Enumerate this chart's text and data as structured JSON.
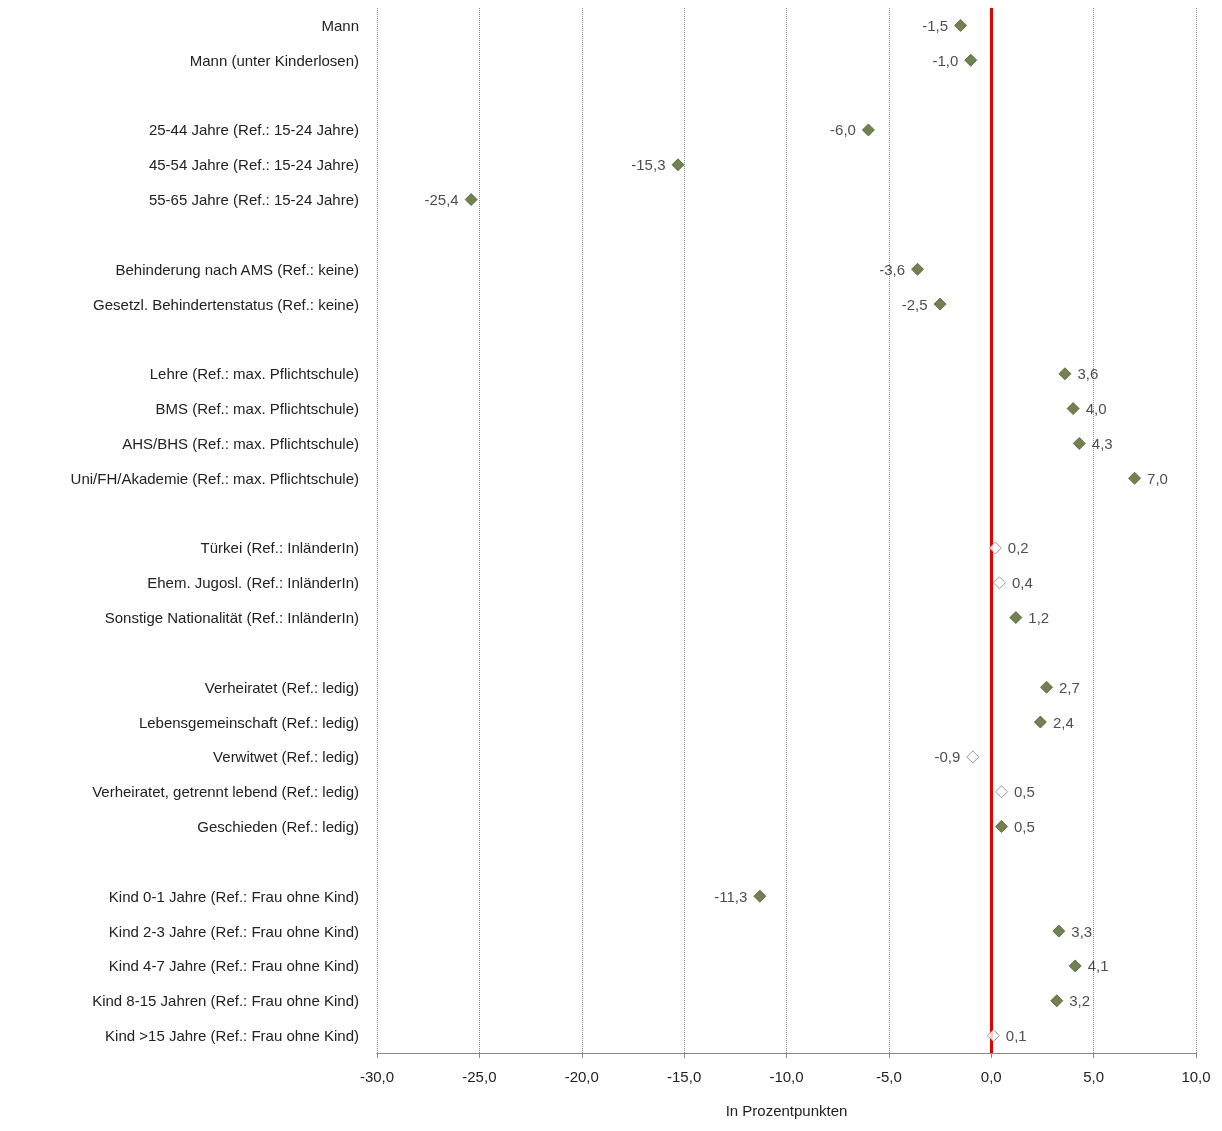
{
  "chart_data": {
    "type": "scatter",
    "orientation": "horizontal",
    "xlabel": "In Prozentpunkten",
    "categories": [
      "Mann",
      "Mann (unter Kinderlosen)",
      null,
      "25-44 Jahre (Ref.: 15-24 Jahre)",
      "45-54 Jahre (Ref.: 15-24 Jahre)",
      "55-65 Jahre (Ref.: 15-24 Jahre)",
      null,
      "Behinderung nach AMS (Ref.: keine)",
      "Gesetzl. Behindertenstatus (Ref.: keine)",
      null,
      "Lehre (Ref.: max. Pflichtschule)",
      "BMS (Ref.: max. Pflichtschule)",
      "AHS/BHS (Ref.: max. Pflichtschule)",
      "Uni/FH/Akademie (Ref.: max. Pflichtschule)",
      null,
      "Türkei (Ref.: InländerIn)",
      "Ehem. Jugosl. (Ref.: InländerIn)",
      "Sonstige Nationalität (Ref.: InländerIn)",
      null,
      "Verheiratet (Ref.: ledig)",
      "Lebensgemeinschaft (Ref.: ledig)",
      "Verwitwet (Ref.: ledig)",
      "Verheiratet, getrennt lebend (Ref.: ledig)",
      "Geschieden (Ref.: ledig)",
      null,
      "Kind 0-1 Jahre (Ref.: Frau ohne Kind)",
      "Kind 2-3 Jahre (Ref.: Frau ohne Kind)",
      "Kind 4-7 Jahre (Ref.: Frau ohne Kind)",
      "Kind 8-15 Jahren (Ref.: Frau ohne Kind)",
      "Kind >15 Jahre (Ref.: Frau ohne Kind)"
    ],
    "series": [
      {
        "color": "#4f6228",
        "values": [
          -1.5,
          -1.0,
          null,
          -6.0,
          -15.3,
          -25.4,
          null,
          -3.6,
          -2.5,
          null,
          3.6,
          4.0,
          4.3,
          7.0,
          null,
          null,
          null,
          1.2,
          null,
          2.7,
          2.4,
          null,
          null,
          0.5,
          null,
          -11.3,
          3.3,
          4.1,
          3.2,
          null
        ],
        "value_labels": [
          "-1,5",
          "-1,0",
          null,
          "-6,0",
          "-15,3",
          "-25,4",
          null,
          "-3,6",
          "-2,5",
          null,
          "3,6",
          "4,0",
          "4,3",
          "7,0",
          null,
          null,
          null,
          "1,2",
          null,
          "2,7",
          "2,4",
          null,
          null,
          "0,5",
          null,
          "-11,3",
          "3,3",
          "4,1",
          "3,2",
          null
        ]
      },
      {
        "color": "#ffffff",
        "values": [
          null,
          null,
          null,
          null,
          null,
          null,
          null,
          null,
          null,
          null,
          null,
          null,
          null,
          null,
          null,
          0.2,
          0.4,
          null,
          null,
          null,
          null,
          -0.9,
          0.5,
          null,
          null,
          null,
          null,
          null,
          null,
          0.1
        ],
        "value_labels": [
          null,
          null,
          null,
          null,
          null,
          null,
          null,
          null,
          null,
          null,
          null,
          null,
          null,
          null,
          null,
          "0,2",
          "0,4",
          null,
          null,
          null,
          null,
          "-0,9",
          "0,5",
          null,
          null,
          null,
          null,
          null,
          null,
          "0,1"
        ]
      }
    ],
    "marker": "diamond",
    "xlim": [
      -30,
      10
    ],
    "xticks": [
      {
        "value": -30,
        "label": "-30,0"
      },
      {
        "value": -25,
        "label": "-25,0"
      },
      {
        "value": -20,
        "label": "-20,0"
      },
      {
        "value": -15,
        "label": "-15,0"
      },
      {
        "value": -10,
        "label": "-10,0"
      },
      {
        "value": -5,
        "label": "-5,0"
      },
      {
        "value": 0,
        "label": "0,0"
      },
      {
        "value": 5,
        "label": "5,0"
      },
      {
        "value": 10,
        "label": "10,0"
      }
    ],
    "grid": "x",
    "ref_lines": [
      {
        "axis": "x",
        "value": 0,
        "color": "#e00000"
      }
    ]
  }
}
